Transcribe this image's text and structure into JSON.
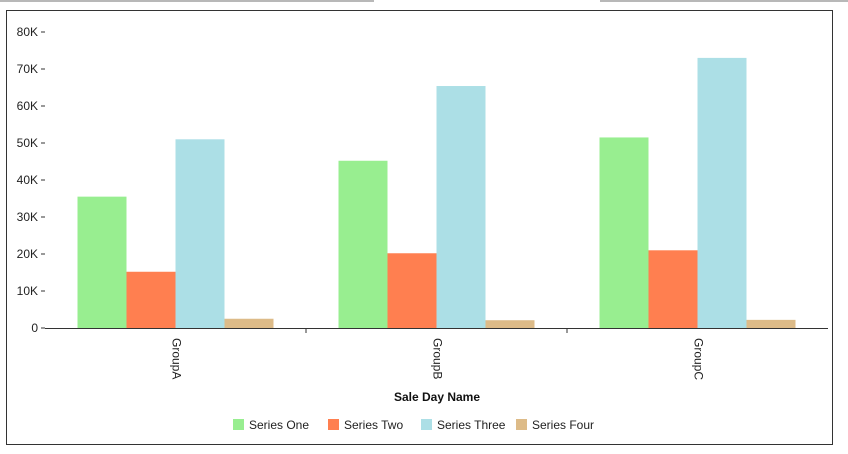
{
  "chart_data": {
    "type": "bar",
    "title": "",
    "xlabel": "Sale Day Name",
    "ylabel": "",
    "categories": [
      "GroupA",
      "GroupB",
      "GroupC"
    ],
    "series": [
      {
        "name": "Series One",
        "color": "#98ee90",
        "values": [
          35500,
          45200,
          51500
        ]
      },
      {
        "name": "Series Two",
        "color": "#ff7f50",
        "values": [
          15200,
          20200,
          21000
        ]
      },
      {
        "name": "Series Three",
        "color": "#acdfe6",
        "values": [
          51000,
          65400,
          73000
        ]
      },
      {
        "name": "Series Four",
        "color": "#ddbb88",
        "values": [
          2500,
          2100,
          2200
        ]
      }
    ],
    "ylim": [
      0,
      80000
    ],
    "yticks": [
      {
        "value": 0,
        "label": "0"
      },
      {
        "value": 10000,
        "label": "10K"
      },
      {
        "value": 20000,
        "label": "20K"
      },
      {
        "value": 30000,
        "label": "30K"
      },
      {
        "value": 40000,
        "label": "40K"
      },
      {
        "value": 50000,
        "label": "50K"
      },
      {
        "value": 60000,
        "label": "60K"
      },
      {
        "value": 70000,
        "label": "70K"
      },
      {
        "value": 80000,
        "label": "80K"
      }
    ],
    "grid": false,
    "legend_position": "bottom-center"
  }
}
